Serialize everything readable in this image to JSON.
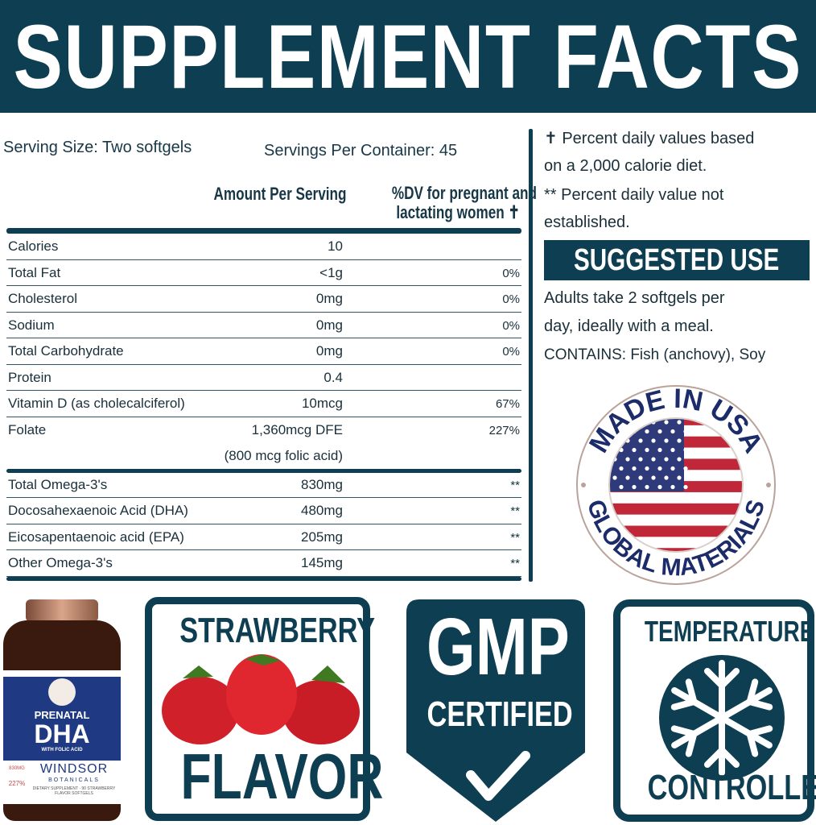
{
  "header": {
    "title": "SUPPLEMENT FACTS"
  },
  "serving": {
    "size": "Serving Size: Two softgels",
    "per_container": "Servings Per Container: 45"
  },
  "columns": {
    "amount": "Amount Per Serving",
    "dv_line1": "%DV for pregnant and",
    "dv_line2": "lactating women ✝"
  },
  "rows": [
    {
      "name": "Calories",
      "amount": "10",
      "dv": ""
    },
    {
      "name": "Total Fat",
      "amount": "<1g",
      "dv": "0%"
    },
    {
      "name": "Cholesterol",
      "amount": "0mg",
      "dv": "0%"
    },
    {
      "name": "Sodium",
      "amount": "0mg",
      "dv": "0%"
    },
    {
      "name": "Total Carbohydrate",
      "amount": "0mg",
      "dv": "0%"
    },
    {
      "name": "Protein",
      "amount": "0.4",
      "dv": ""
    },
    {
      "name": "Vitamin D (as cholecalciferol)",
      "amount": "10mcg",
      "dv": "67%"
    },
    {
      "name": "Folate",
      "amount": "1,360mcg DFE",
      "amount2": "(800 mcg folic acid)",
      "dv": "227%"
    }
  ],
  "omega_rows": [
    {
      "name": "Total Omega-3's",
      "amount": "830mg",
      "dv": "**"
    },
    {
      "name": "Docosahexaenoic Acid (DHA)",
      "amount": "480mg",
      "dv": "**"
    },
    {
      "name": "Eicosapentaenoic acid (EPA)",
      "amount": "205mg",
      "dv": "**"
    },
    {
      "name": "Other Omega-3's",
      "amount": "145mg",
      "dv": "**"
    }
  ],
  "notes": {
    "dv_note_1": "✝ Percent daily values based",
    "dv_note_2": "on a 2,000 calorie diet.",
    "na_note_1": "** Percent daily value not",
    "na_note_2": "established."
  },
  "suggested_use": {
    "title": "SUGGESTED USE",
    "line1": "Adults take 2 softgels per",
    "line2": "day, ideally with a meal.",
    "contains": "CONTAINS: Fish (anchovy), Soy"
  },
  "seal": {
    "top": "MADE IN USA",
    "bottom": "GLOBAL MATERIALS"
  },
  "bottle": {
    "line1": "PRENATAL",
    "line2": "DHA",
    "line3": "WITH FOLIC ACID",
    "brand": "WINDSOR",
    "brand2": "BOTANICALS",
    "small1": "830MG",
    "small2": "227%",
    "footer": "DIETARY SUPPLEMENT · 90 STRAWBERRY FLAVOR SOFTGELS"
  },
  "badges": {
    "flavor_top": "STRAWBERRY",
    "flavor_bottom": "FLAVOR",
    "gmp": "GMP",
    "certified": "CERTIFIED",
    "temp_top": "TEMPERATURE",
    "temp_bottom": "CONTROLLED"
  },
  "colors": {
    "brand": "#0e3e51",
    "flag_red": "#c0283a",
    "flag_blue": "#2e3a7a"
  }
}
